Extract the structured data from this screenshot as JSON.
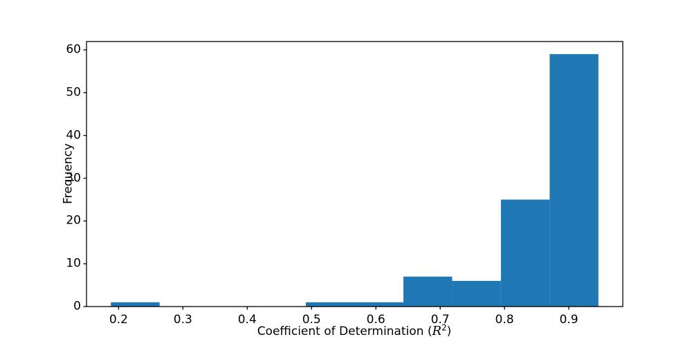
{
  "chart_data": {
    "type": "bar",
    "subtype": "histogram",
    "title": "",
    "xlabel": "Coefficient of Determination (R²)",
    "xlabel_parts": {
      "prefix": "Coefficient of Determination (",
      "var": "R",
      "sup": "2",
      "suffix": ")"
    },
    "ylabel": "Frequency",
    "bin_edges": [
      0.188,
      0.2638,
      0.3396,
      0.4154,
      0.4912,
      0.567,
      0.6428,
      0.7186,
      0.7944,
      0.8702,
      0.946
    ],
    "counts": [
      1,
      0,
      0,
      0,
      1,
      1,
      7,
      6,
      25,
      59
    ],
    "x_ticks": [
      0.2,
      0.3,
      0.4,
      0.5,
      0.6,
      0.7,
      0.8,
      0.9
    ],
    "x_tick_labels": [
      "0.2",
      "0.3",
      "0.4",
      "0.5",
      "0.6",
      "0.7",
      "0.8",
      "0.9"
    ],
    "y_ticks": [
      0,
      10,
      20,
      30,
      40,
      50,
      60
    ],
    "y_tick_labels": [
      "0",
      "10",
      "20",
      "30",
      "40",
      "50",
      "60"
    ],
    "xlim": [
      0.1501,
      0.9839
    ],
    "ylim": [
      0,
      61.95
    ],
    "grid": false,
    "legend": null,
    "bar_color": "#1f77b4",
    "axis_color": "#000000",
    "background_color": "#ffffff"
  }
}
